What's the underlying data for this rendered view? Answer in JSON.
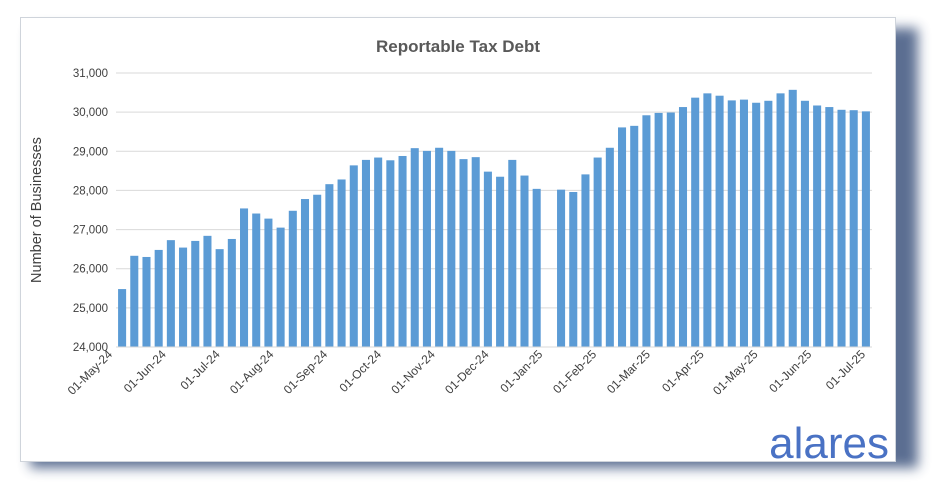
{
  "brand": {
    "logo_text": "alares",
    "accent_color": "#5b9bd5",
    "logo_color": "#4a72c4"
  },
  "chart_data": {
    "type": "bar",
    "title": "Reportable Tax Debt",
    "xlabel": "",
    "ylabel": "Number of Businesses",
    "ylim": [
      24000,
      31000
    ],
    "yticks": [
      "24,000",
      "25,000",
      "26,000",
      "27,000",
      "28,000",
      "29,000",
      "30,000",
      "31,000"
    ],
    "grid": true,
    "bar_color": "#5b9bd5",
    "x_tick_labels": [
      "01-May-24",
      "01-Jun-24",
      "01-Jul-24",
      "01-Aug-24",
      "01-Sep-24",
      "01-Oct-24",
      "01-Nov-24",
      "01-Dec-24",
      "01-Jan-25",
      "01-Feb-25",
      "01-Mar-25",
      "01-Apr-25",
      "01-May-25",
      "01-Jun-25",
      "01-Jul-25"
    ],
    "series": [
      {
        "values": [
          25480,
          26330,
          26300,
          26480,
          26730,
          26540,
          26710,
          26840,
          26500,
          26760,
          27540,
          27410,
          27280,
          27050,
          27480,
          27780,
          27890,
          28160,
          28280,
          28640,
          28780,
          28840,
          28770,
          28880,
          29080,
          29010,
          29090,
          29010,
          28800,
          28850,
          28480,
          28350,
          28780,
          28380,
          28040,
          null,
          28020,
          27960,
          28410,
          28840,
          29090,
          29610,
          29650,
          29920,
          29980,
          29990,
          30130,
          30370,
          30480,
          30420,
          30300,
          30320,
          30240,
          30290,
          30480,
          30570,
          30290,
          30170,
          30130,
          30060,
          30050,
          30020
        ]
      }
    ]
  }
}
